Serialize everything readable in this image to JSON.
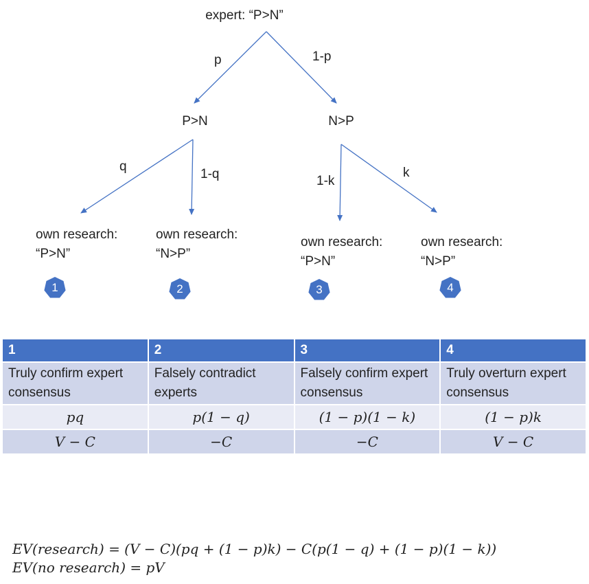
{
  "tree": {
    "root": "expert: “P>N”",
    "edge_p": "p",
    "edge_1mp": "1-p",
    "node_pn": "P>N",
    "node_np": "N>P",
    "edge_q": "q",
    "edge_1mq": "1-q",
    "edge_1mk": "1-k",
    "edge_k": "k",
    "leaves": [
      {
        "line1": "own research:",
        "line2": "“P>N”",
        "badge": "1"
      },
      {
        "line1": "own research:",
        "line2": "“N>P”",
        "badge": "2"
      },
      {
        "line1": "own research:",
        "line2": "“P>N”",
        "badge": "3"
      },
      {
        "line1": "own research:",
        "line2": "“N>P”",
        "badge": "4"
      }
    ],
    "colors": {
      "arrow": "#4472c4",
      "badge": "#4472c4"
    }
  },
  "table": {
    "headers": [
      "1",
      "2",
      "3",
      "4"
    ],
    "descriptions": [
      "Truly confirm expert consensus",
      "Falsely contradict experts",
      "Falsely confirm expert consensus",
      "Truly overturn expert consensus"
    ],
    "probabilities": [
      "pq",
      "p(1 − q)",
      "(1 − p)(1 − k)",
      "(1 − p)k"
    ],
    "values": [
      "V − C",
      "−C",
      "−C",
      "V − C"
    ],
    "colors": {
      "header": "#4472c4",
      "row_dark": "#cfd5ea",
      "row_light": "#e9ebf5"
    }
  },
  "formulas": {
    "ev_research": "EV(research) = (V − C)(pq + (1 − p)k)  − C(p(1 − q) + (1 − p)(1 − k))",
    "ev_no_research": "EV(no research) = pV"
  }
}
